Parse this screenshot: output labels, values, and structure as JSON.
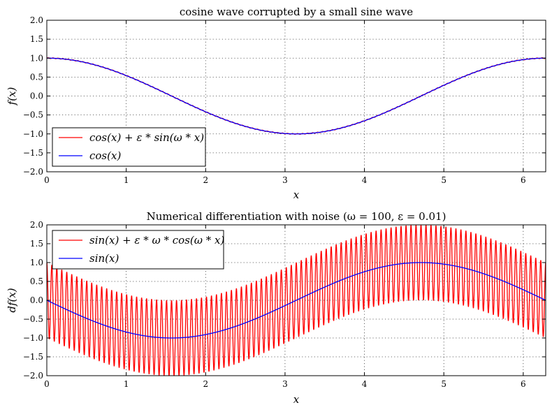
{
  "chart_data": [
    {
      "type": "line",
      "title": "cosine wave corrupted by a small sine wave",
      "xlabel": "x",
      "ylabel": "f(x)",
      "xlim": [
        0,
        6.283
      ],
      "ylim": [
        -2.0,
        2.0
      ],
      "xticks": [
        0,
        1,
        2,
        3,
        4,
        5,
        6
      ],
      "xtick_labels": [
        "0",
        "1",
        "2",
        "3",
        "4",
        "5",
        "6"
      ],
      "yticks": [
        -2.0,
        -1.5,
        -1.0,
        -0.5,
        0.0,
        0.5,
        1.0,
        1.5,
        2.0
      ],
      "ytick_labels": [
        "−2.0",
        "−1.5",
        "−1.0",
        "−0.5",
        "0.0",
        "0.5",
        "1.0",
        "1.5",
        "2.0"
      ],
      "grid": true,
      "legend_position": "lower-left",
      "series": [
        {
          "name": "cos(x) + ε * sin(ω * x)",
          "color": "#ff0000",
          "function": "cos(x) + 0.01*sin(100*x)"
        },
        {
          "name": "cos(x)",
          "color": "#0000ff",
          "function": "cos(x)"
        }
      ],
      "parameters": {
        "omega": 100,
        "epsilon": 0.01
      }
    },
    {
      "type": "line",
      "title": "Numerical differentiation with noise (ω = 100, ε = 0.01)",
      "xlabel": "x",
      "ylabel": "df(x)",
      "xlim": [
        0,
        6.283
      ],
      "ylim": [
        -2.0,
        2.0
      ],
      "xticks": [
        0,
        1,
        2,
        3,
        4,
        5,
        6
      ],
      "xtick_labels": [
        "0",
        "1",
        "2",
        "3",
        "4",
        "5",
        "6"
      ],
      "yticks": [
        -2.0,
        -1.5,
        -1.0,
        -0.5,
        0.0,
        0.5,
        1.0,
        1.5,
        2.0
      ],
      "ytick_labels": [
        "−2.0",
        "−1.5",
        "−1.0",
        "−0.5",
        "0.0",
        "0.5",
        "1.0",
        "1.5",
        "2.0"
      ],
      "grid": true,
      "legend_position": "upper-left",
      "series": [
        {
          "name": "sin(x) + ε * ω * cos(ω * x)",
          "color": "#ff0000",
          "function": "-sin(x) + 1*cos(100*x)"
        },
        {
          "name": "sin(x)",
          "color": "#0000ff",
          "function": "-sin(x)"
        }
      ],
      "parameters": {
        "omega": 100,
        "epsilon": 0.01
      }
    }
  ]
}
